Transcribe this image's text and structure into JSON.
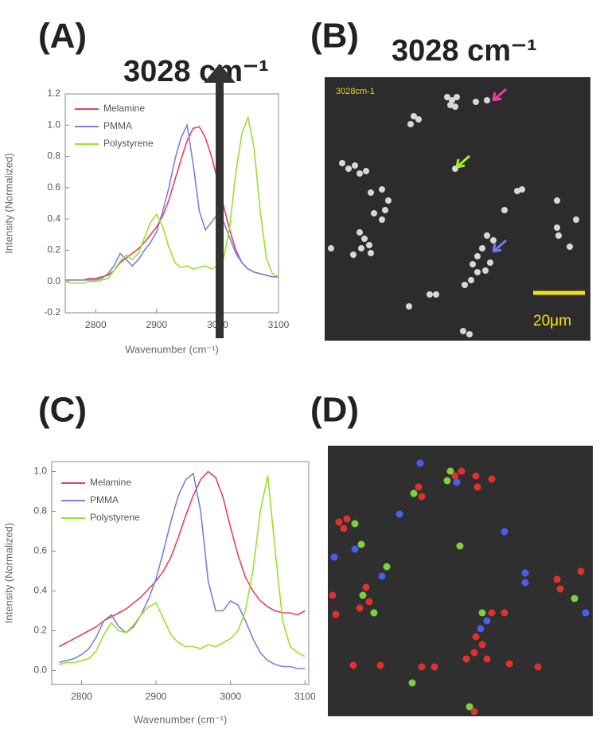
{
  "panels": {
    "A": "(A)",
    "B": "(B)",
    "C": "(C)",
    "D": "(D)",
    "A_band": "3028 cm⁻¹",
    "B_band": "3028 cm⁻¹",
    "B_image_label": "3028cm-1",
    "B_scale_bar": "20μm"
  },
  "chart_data": [
    {
      "type": "line",
      "xlabel": "Wavenumber (cm⁻¹)",
      "ylabel": "Intensity (Normalized)",
      "xlim": [
        2750,
        3100
      ],
      "ylim": [
        -0.2,
        1.2
      ],
      "xticks": [
        2800,
        2900,
        3000,
        3100
      ],
      "yticks": [
        -0.2,
        {
          "value": 0,
          "label": "0.0"
        },
        0.2,
        0.4,
        0.6,
        0.8,
        {
          "value": 1,
          "label": "1.0"
        },
        1.2
      ],
      "x": [
        2750,
        2760,
        2770,
        2780,
        2790,
        2800,
        2810,
        2820,
        2830,
        2840,
        2850,
        2860,
        2870,
        2880,
        2890,
        2900,
        2910,
        2920,
        2930,
        2940,
        2950,
        2960,
        2970,
        2980,
        2990,
        3000,
        3010,
        3020,
        3030,
        3040,
        3050,
        3060,
        3070,
        3080,
        3090,
        3100
      ],
      "series": [
        {
          "name": "Melamine",
          "color": "#e8415a",
          "values": [
            0.01,
            0.01,
            0.01,
            0.01,
            0.02,
            0.02,
            0.03,
            0.04,
            0.07,
            0.12,
            0.15,
            0.18,
            0.21,
            0.25,
            0.3,
            0.35,
            0.42,
            0.52,
            0.65,
            0.78,
            0.9,
            0.98,
            0.99,
            0.92,
            0.8,
            0.65,
            0.48,
            0.33,
            0.2,
            0.12,
            0.08,
            0.06,
            0.05,
            0.04,
            0.03,
            0.03
          ]
        },
        {
          "name": "PMMA",
          "color": "#7a80e0",
          "values": [
            0.01,
            0.01,
            0.01,
            0.01,
            0.01,
            0.01,
            0.02,
            0.05,
            0.1,
            0.18,
            0.14,
            0.1,
            0.14,
            0.2,
            0.25,
            0.32,
            0.45,
            0.6,
            0.78,
            0.92,
            1.0,
            0.75,
            0.45,
            0.33,
            0.38,
            0.43,
            0.38,
            0.28,
            0.18,
            0.12,
            0.08,
            0.06,
            0.05,
            0.04,
            0.03,
            0.03
          ]
        },
        {
          "name": "Polystyrene",
          "color": "#9be02c",
          "values": [
            0.0,
            -0.01,
            -0.01,
            -0.01,
            0.0,
            0.0,
            0.01,
            0.02,
            0.07,
            0.13,
            0.17,
            0.14,
            0.18,
            0.28,
            0.38,
            0.43,
            0.35,
            0.22,
            0.12,
            0.09,
            0.1,
            0.08,
            0.09,
            0.1,
            0.08,
            0.1,
            0.15,
            0.35,
            0.7,
            0.95,
            1.05,
            0.85,
            0.45,
            0.15,
            0.05,
            0.03
          ]
        }
      ]
    },
    {
      "type": "line",
      "xlabel": "Wavenumber (cm⁻¹)",
      "ylabel": "Intensity (Normalized)",
      "xlim": [
        2760,
        3105
      ],
      "ylim": [
        -0.07,
        1.05
      ],
      "xticks": [
        2800,
        2900,
        3000,
        3100
      ],
      "yticks": [
        {
          "value": 0,
          "label": "0.0"
        },
        0.2,
        0.4,
        0.6,
        0.8,
        {
          "value": 1,
          "label": "1.0"
        }
      ],
      "x": [
        2770,
        2780,
        2790,
        2800,
        2810,
        2820,
        2830,
        2840,
        2850,
        2860,
        2870,
        2880,
        2890,
        2900,
        2910,
        2920,
        2930,
        2940,
        2950,
        2960,
        2970,
        2980,
        2990,
        3000,
        3010,
        3020,
        3030,
        3040,
        3050,
        3060,
        3070,
        3080,
        3090,
        3100
      ],
      "series": [
        {
          "name": "Melamine",
          "color": "#e8415a",
          "values": [
            0.12,
            0.14,
            0.16,
            0.18,
            0.2,
            0.22,
            0.25,
            0.27,
            0.29,
            0.31,
            0.34,
            0.37,
            0.41,
            0.45,
            0.5,
            0.57,
            0.67,
            0.78,
            0.88,
            0.96,
            1.0,
            0.97,
            0.87,
            0.72,
            0.58,
            0.47,
            0.4,
            0.35,
            0.32,
            0.3,
            0.29,
            0.29,
            0.28,
            0.3
          ]
        },
        {
          "name": "PMMA",
          "color": "#7a80e0",
          "values": [
            0.04,
            0.05,
            0.06,
            0.08,
            0.11,
            0.17,
            0.25,
            0.28,
            0.22,
            0.19,
            0.22,
            0.28,
            0.36,
            0.46,
            0.6,
            0.75,
            0.88,
            0.96,
            0.99,
            0.8,
            0.45,
            0.3,
            0.3,
            0.35,
            0.33,
            0.25,
            0.16,
            0.09,
            0.05,
            0.03,
            0.02,
            0.02,
            0.01,
            0.01
          ]
        },
        {
          "name": "Polystyrene",
          "color": "#9be02c",
          "values": [
            0.03,
            0.04,
            0.04,
            0.05,
            0.06,
            0.1,
            0.18,
            0.24,
            0.2,
            0.19,
            0.23,
            0.28,
            0.32,
            0.34,
            0.26,
            0.18,
            0.14,
            0.12,
            0.12,
            0.11,
            0.13,
            0.12,
            0.14,
            0.16,
            0.2,
            0.3,
            0.5,
            0.8,
            0.98,
            0.6,
            0.25,
            0.12,
            0.09,
            0.07
          ]
        }
      ]
    }
  ]
}
